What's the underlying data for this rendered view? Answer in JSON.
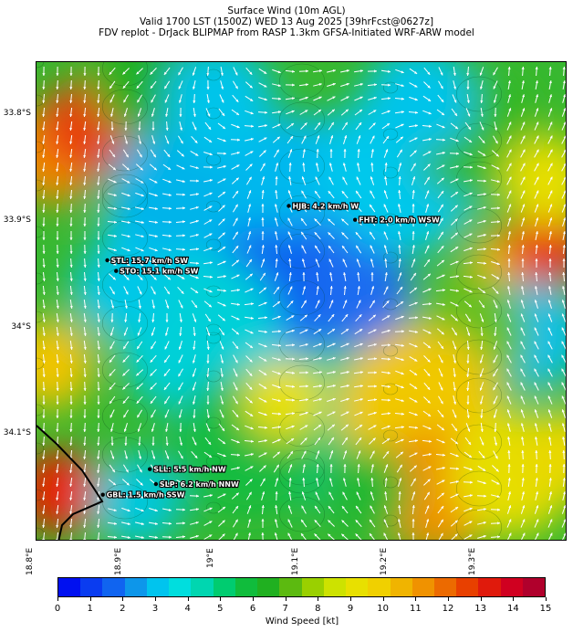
{
  "title": {
    "line1": "Surface Wind (10m AGL)",
    "line2": "Valid 1700 LST (1500Z) WED 13 Aug 2025 [39hrFcst@0627z]",
    "line3": "FDV replot - DrJack BLIPMAP from RASP 1.3km GFSA-Initiated WRF-ARW model"
  },
  "map": {
    "lon_range": [
      18.8,
      19.4
    ],
    "lat_range": [
      -34.2,
      -33.75
    ],
    "lat_ticks": [
      {
        "value": -33.8,
        "label": "33.8°S"
      },
      {
        "value": -33.9,
        "label": "33.9°S"
      },
      {
        "value": -34.0,
        "label": "34°S"
      },
      {
        "value": -34.1,
        "label": "34.1°S"
      }
    ],
    "lon_ticks": [
      {
        "value": 18.8,
        "label": "18.8°E"
      },
      {
        "value": 18.9,
        "label": "18.9°E"
      },
      {
        "value": 19.0,
        "label": "19°E"
      },
      {
        "value": 19.1,
        "label": "19.1°E"
      },
      {
        "value": 19.2,
        "label": "19.2°E"
      },
      {
        "value": 19.3,
        "label": "19.3°E"
      }
    ],
    "stations": [
      {
        "id": "HJB",
        "lon": 19.085,
        "lat": -33.885,
        "label": "HJB: 4.2 km/h W",
        "speed_kmh": 4.2,
        "dir": "W"
      },
      {
        "id": "FHT",
        "lon": 19.16,
        "lat": -33.898,
        "label": "FHT: 2.0 km/h WSW",
        "speed_kmh": 2.0,
        "dir": "WSW"
      },
      {
        "id": "STL",
        "lon": 18.88,
        "lat": -33.936,
        "label": "STL: 15.7 km/h SW",
        "speed_kmh": 15.7,
        "dir": "SW"
      },
      {
        "id": "STO",
        "lon": 18.89,
        "lat": -33.946,
        "label": "STO: 15.1 km/h SW",
        "speed_kmh": 15.1,
        "dir": "SW"
      },
      {
        "id": "SLL",
        "lon": 18.928,
        "lat": -34.132,
        "label": "SLL: 5.5 km/h NW",
        "speed_kmh": 5.5,
        "dir": "NW"
      },
      {
        "id": "SLP",
        "lon": 18.935,
        "lat": -34.146,
        "label": "SLP: 6.2 km/h NNW",
        "speed_kmh": 6.2,
        "dir": "NNW"
      },
      {
        "id": "GBL",
        "lon": 18.875,
        "lat": -34.156,
        "label": "GBL: 1.5 km/h SSW",
        "speed_kmh": 1.5,
        "dir": "SSW"
      }
    ]
  },
  "colorbar": {
    "label": "Wind Speed [kt]",
    "min": 0,
    "max": 15,
    "tick_labels": [
      "0",
      "1",
      "2",
      "3",
      "4",
      "5",
      "6",
      "7",
      "8",
      "9",
      "10",
      "11",
      "12",
      "13",
      "14",
      "15"
    ],
    "colors": [
      "#0010f0",
      "#0a3cf0",
      "#1064f0",
      "#0d96ea",
      "#00c4ee",
      "#00dede",
      "#00d6b0",
      "#00cc70",
      "#10bc3c",
      "#20b020",
      "#5cba10",
      "#9ad000",
      "#cde200",
      "#e8e000",
      "#f0d000",
      "#f0b400",
      "#f09200",
      "#ec6a00",
      "#e84000",
      "#e01a0c",
      "#d00020",
      "#b0002c"
    ]
  }
}
